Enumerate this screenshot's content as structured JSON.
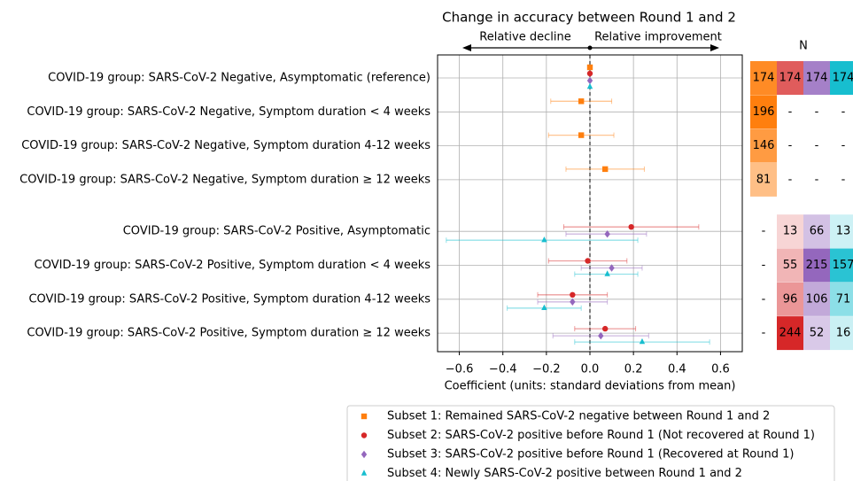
{
  "chart_data": {
    "type": "forest",
    "title": "Change in accuracy between Round 1 and 2",
    "annotations": {
      "left": "Relative decline",
      "right": "Relative improvement"
    },
    "xlabel": "Coefficient (units: standard deviations from mean)",
    "xlim": [
      -0.7,
      0.7
    ],
    "xticks": [
      {
        "value": -0.6,
        "label": "−0.6"
      },
      {
        "value": -0.4,
        "label": "−0.4"
      },
      {
        "value": -0.2,
        "label": "−0.2"
      },
      {
        "value": 0,
        "label": "0.0"
      },
      0.2,
      0.4,
      0.6
    ],
    "grid": true,
    "categories": [
      "COVID-19 group: SARS-CoV-2 Negative, Asymptomatic (reference)",
      "COVID-19 group: SARS-CoV-2 Negative, Symptom duration < 4 weeks",
      "COVID-19 group: SARS-CoV-2 Negative, Symptom duration 4-12 weeks",
      "COVID-19 group: SARS-CoV-2 Negative, Symptom duration ≥ 12 weeks",
      "COVID-19 group: SARS-CoV-2 Positive, Asymptomatic",
      "COVID-19 group: SARS-CoV-2 Positive, Symptom duration < 4 weeks",
      "COVID-19 group: SARS-CoV-2 Positive, Symptom duration 4-12 weeks",
      "COVID-19 group: SARS-CoV-2 Positive, Symptom duration ≥ 12 weeks"
    ],
    "series": [
      {
        "name": "Subset 1: Remained SARS-CoV-2 negative between Round 1 and 2",
        "color": "#ff7f0e",
        "marker": "square",
        "values": [
          0,
          -0.04,
          -0.04,
          0.07,
          null,
          null,
          null,
          null
        ],
        "ci_low": [
          null,
          -0.18,
          -0.19,
          -0.11,
          null,
          null,
          null,
          null
        ],
        "ci_high": [
          null,
          0.1,
          0.11,
          0.25,
          null,
          null,
          null,
          null
        ]
      },
      {
        "name": "Subset 2: SARS-CoV-2 positive before Round 1 (Not recovered at Round 1)",
        "color": "#d62728",
        "marker": "circle",
        "values": [
          0,
          null,
          null,
          null,
          0.19,
          -0.01,
          -0.08,
          0.07
        ],
        "ci_low": [
          null,
          null,
          null,
          null,
          -0.12,
          -0.19,
          -0.24,
          -0.07
        ],
        "ci_high": [
          null,
          null,
          null,
          null,
          0.5,
          0.17,
          0.08,
          0.21
        ]
      },
      {
        "name": "Subset 3: SARS-CoV-2 positive before Round 1 (Recovered at Round 1)",
        "color": "#9467bd",
        "marker": "diamond",
        "values": [
          0,
          null,
          null,
          null,
          0.08,
          0.1,
          -0.08,
          0.05
        ],
        "ci_low": [
          null,
          null,
          null,
          null,
          -0.11,
          -0.04,
          -0.24,
          -0.17
        ],
        "ci_high": [
          null,
          null,
          null,
          null,
          0.26,
          0.24,
          0.08,
          0.27
        ]
      },
      {
        "name": "Subset 4: Newly SARS-CoV-2 positive between Round 1 and 2",
        "color": "#17becf",
        "marker": "triangle",
        "values": [
          0,
          null,
          null,
          null,
          -0.21,
          0.08,
          -0.21,
          0.24
        ],
        "ci_low": [
          null,
          null,
          null,
          null,
          -0.66,
          -0.07,
          -0.38,
          -0.07
        ],
        "ci_high": [
          null,
          null,
          null,
          null,
          0.22,
          0.22,
          -0.04,
          0.55
        ]
      }
    ],
    "n_table": {
      "title": "N",
      "rows": [
        [
          174,
          174,
          174,
          174
        ],
        [
          196,
          "-",
          "-",
          "-"
        ],
        [
          146,
          "-",
          "-",
          "-"
        ],
        [
          81,
          "-",
          "-",
          "-"
        ],
        [
          "-",
          13,
          66,
          13
        ],
        [
          "-",
          55,
          215,
          157
        ],
        [
          "-",
          96,
          106,
          71
        ],
        [
          "-",
          244,
          52,
          16
        ]
      ]
    }
  }
}
